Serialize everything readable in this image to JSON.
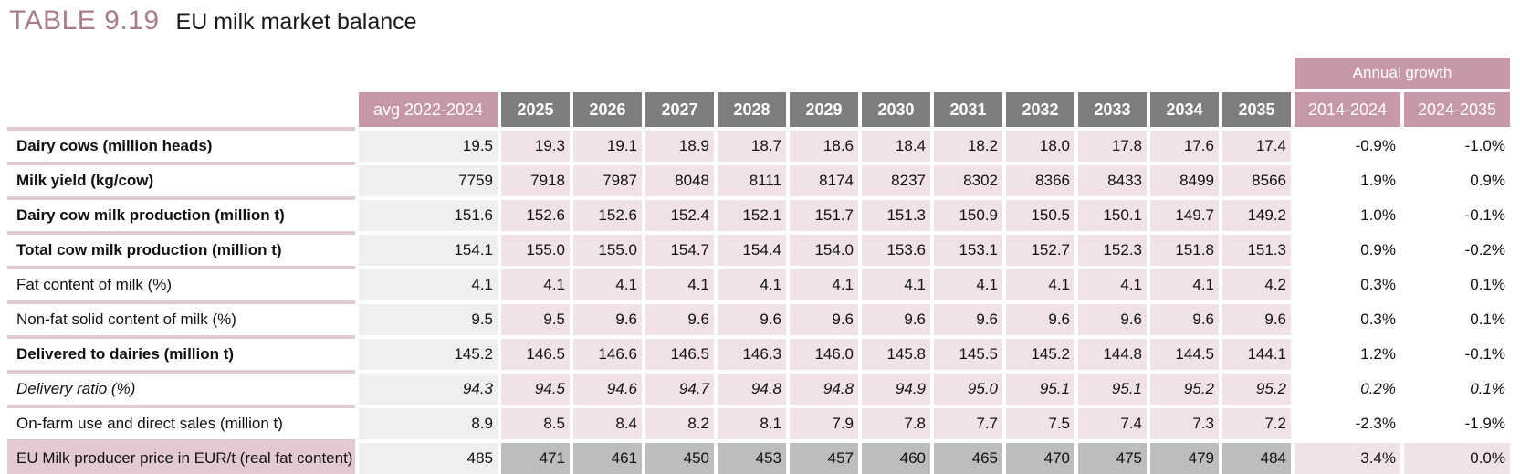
{
  "title": {
    "number": "TABLE 9.19",
    "name": "EU milk market balance"
  },
  "table": {
    "group_header": "Annual growth",
    "columns": [
      "avg 2022-2024",
      "2025",
      "2026",
      "2027",
      "2028",
      "2029",
      "2030",
      "2031",
      "2032",
      "2033",
      "2034",
      "2035"
    ],
    "growth_columns": [
      "2014-2024",
      "2024-2035"
    ],
    "rows": [
      {
        "label": "Dairy cows (million heads)",
        "style": "bold",
        "values": [
          "19.5",
          "19.3",
          "19.1",
          "18.9",
          "18.7",
          "18.6",
          "18.4",
          "18.2",
          "18.0",
          "17.8",
          "17.6",
          "17.4"
        ],
        "growth": [
          "-0.9%",
          "-1.0%"
        ]
      },
      {
        "label": "Milk yield (kg/cow)",
        "style": "bold",
        "values": [
          "7759",
          "7918",
          "7987",
          "8048",
          "8111",
          "8174",
          "8237",
          "8302",
          "8366",
          "8433",
          "8499",
          "8566"
        ],
        "growth": [
          "1.9%",
          "0.9%"
        ]
      },
      {
        "label": "Dairy cow milk production (million t)",
        "style": "bold",
        "values": [
          "151.6",
          "152.6",
          "152.6",
          "152.4",
          "152.1",
          "151.7",
          "151.3",
          "150.9",
          "150.5",
          "150.1",
          "149.7",
          "149.2"
        ],
        "growth": [
          "1.0%",
          "-0.1%"
        ]
      },
      {
        "label": "Total cow milk production (million t)",
        "style": "bold",
        "values": [
          "154.1",
          "155.0",
          "155.0",
          "154.7",
          "154.4",
          "154.0",
          "153.6",
          "153.1",
          "152.7",
          "152.3",
          "151.8",
          "151.3"
        ],
        "growth": [
          "0.9%",
          "-0.2%"
        ]
      },
      {
        "label": "Fat content of milk (%)",
        "style": "normal",
        "values": [
          "4.1",
          "4.1",
          "4.1",
          "4.1",
          "4.1",
          "4.1",
          "4.1",
          "4.1",
          "4.1",
          "4.1",
          "4.1",
          "4.2"
        ],
        "growth": [
          "0.3%",
          "0.1%"
        ]
      },
      {
        "label": "Non-fat solid content of milk (%)",
        "style": "normal",
        "values": [
          "9.5",
          "9.5",
          "9.6",
          "9.6",
          "9.6",
          "9.6",
          "9.6",
          "9.6",
          "9.6",
          "9.6",
          "9.6",
          "9.6"
        ],
        "growth": [
          "0.3%",
          "0.1%"
        ]
      },
      {
        "label": "Delivered to dairies (million t)",
        "style": "bold",
        "values": [
          "145.2",
          "146.5",
          "146.6",
          "146.5",
          "146.3",
          "146.0",
          "145.8",
          "145.5",
          "145.2",
          "144.8",
          "144.5",
          "144.1"
        ],
        "growth": [
          "1.2%",
          "-0.1%"
        ]
      },
      {
        "label": "Delivery ratio (%)",
        "style": "italic",
        "values": [
          "94.3",
          "94.5",
          "94.6",
          "94.7",
          "94.8",
          "94.8",
          "94.9",
          "95.0",
          "95.1",
          "95.1",
          "95.2",
          "95.2"
        ],
        "growth": [
          "0.2%",
          "0.1%"
        ]
      },
      {
        "label": "On-farm use and direct sales (million t)",
        "style": "normal",
        "values": [
          "8.9",
          "8.5",
          "8.4",
          "8.2",
          "8.1",
          "7.9",
          "7.8",
          "7.7",
          "7.5",
          "7.4",
          "7.3",
          "7.2"
        ],
        "growth": [
          "-2.3%",
          "-1.9%"
        ]
      },
      {
        "label": "EU Milk producer price in EUR/t (real fat content)",
        "style": "price",
        "values": [
          "485",
          "471",
          "461",
          "450",
          "453",
          "457",
          "460",
          "465",
          "470",
          "475",
          "479",
          "484"
        ],
        "growth": [
          "3.4%",
          "0.0%"
        ]
      }
    ]
  }
}
